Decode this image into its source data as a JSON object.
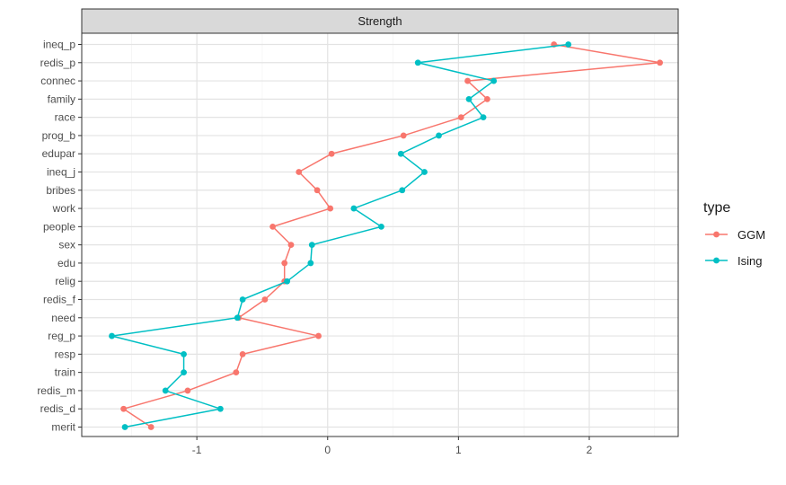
{
  "chart_data": {
    "type": "line",
    "facet_title": "Strength",
    "categories": [
      "ineq_p",
      "redis_p",
      "connec",
      "family",
      "race",
      "prog_b",
      "edupar",
      "ineq_j",
      "bribes",
      "work",
      "people",
      "sex",
      "edu",
      "relig",
      "redis_f",
      "need",
      "reg_p",
      "resp",
      "train",
      "redis_m",
      "redis_d",
      "merit"
    ],
    "xlim": [
      -1.88,
      2.68
    ],
    "xticks": [
      -1,
      0,
      1,
      2
    ],
    "xtick_labels": [
      "-1",
      "0",
      "1",
      "2"
    ],
    "xlabel": "",
    "ylabel": "",
    "grid": true,
    "legend": {
      "title": "type",
      "position": "right"
    },
    "series": [
      {
        "name": "GGM",
        "color": "#F8766D",
        "values": [
          1.73,
          2.54,
          1.07,
          1.22,
          1.02,
          0.58,
          0.03,
          -0.22,
          -0.08,
          0.02,
          -0.42,
          -0.28,
          -0.33,
          -0.33,
          -0.48,
          -0.68,
          -0.07,
          -0.65,
          -0.7,
          -1.07,
          -1.56,
          -1.35
        ]
      },
      {
        "name": "Ising",
        "color": "#00BFC4",
        "values": [
          1.84,
          0.69,
          1.27,
          1.08,
          1.19,
          0.85,
          0.56,
          0.74,
          0.57,
          0.2,
          0.41,
          -0.12,
          -0.13,
          -0.31,
          -0.65,
          -0.69,
          -1.65,
          -1.1,
          -1.1,
          -1.24,
          -0.82,
          -1.55
        ]
      }
    ]
  }
}
